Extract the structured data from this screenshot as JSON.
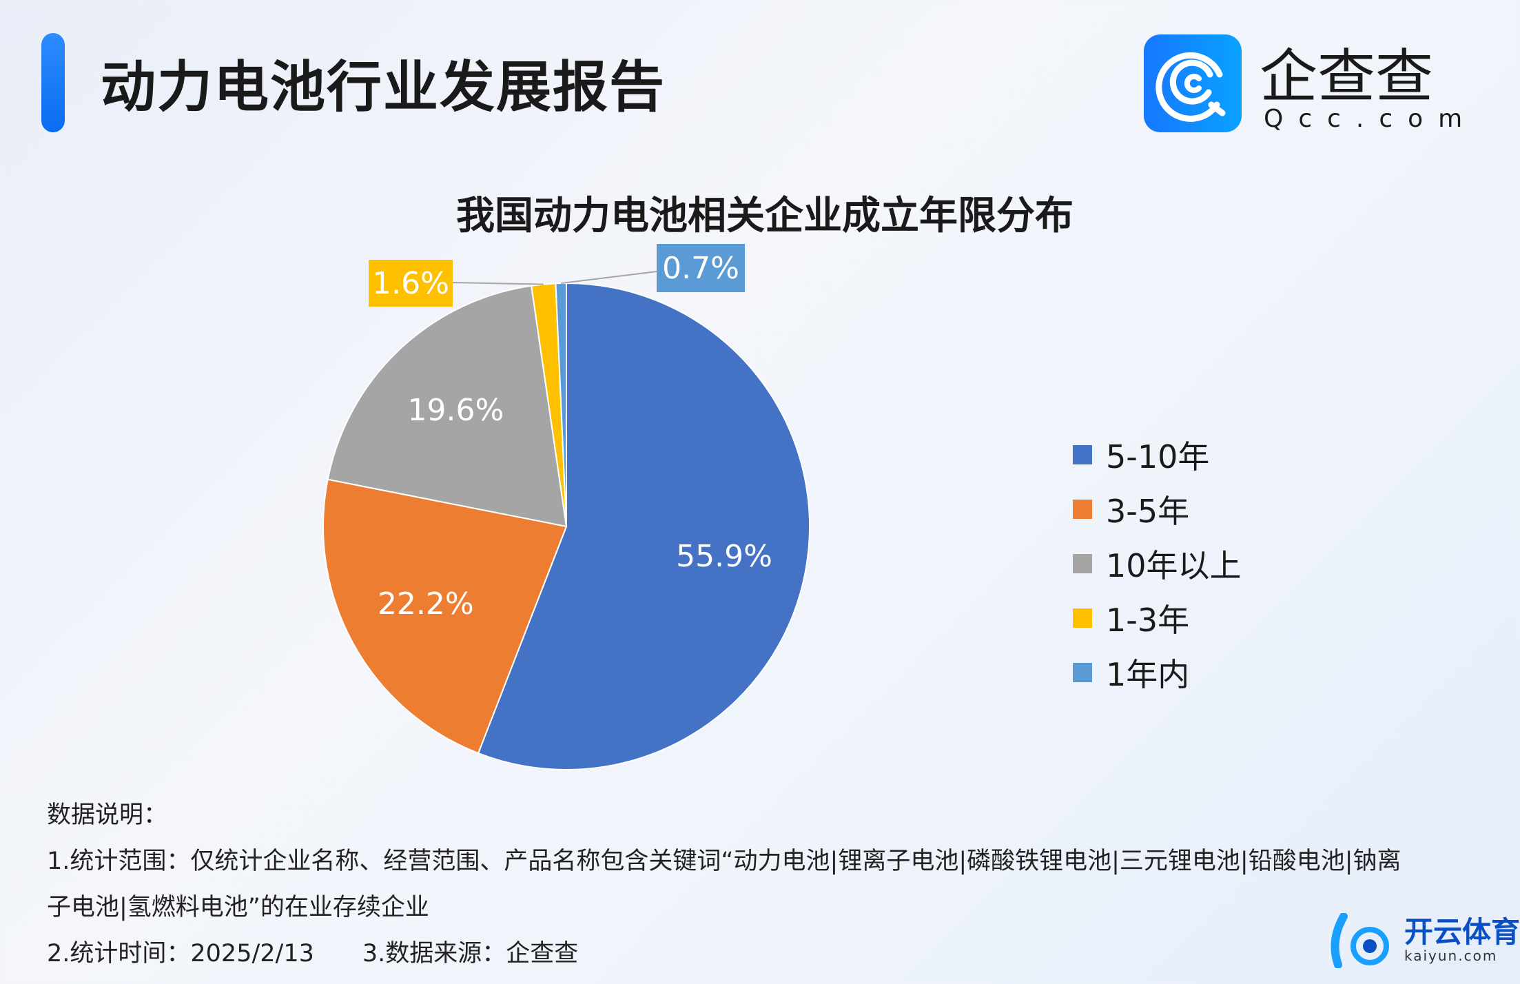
{
  "header": {
    "title": "动力电池行业发展报告"
  },
  "logo": {
    "name_cn": "企查查",
    "domain": "Qcc.com",
    "icon": "qcc-logo-icon",
    "color": "#1677ff"
  },
  "chart_data": {
    "type": "pie",
    "title": "我国动力电池相关企业成立年限分布",
    "categories": [
      "5-10年",
      "3-5年",
      "10年以上",
      "1-3年",
      "1年内"
    ],
    "values": [
      55.9,
      22.2,
      19.6,
      1.6,
      0.7
    ],
    "labels": [
      "55.9%",
      "22.2%",
      "19.6%",
      "1.6%",
      "0.7%"
    ],
    "colors": [
      "#4472c4",
      "#ed7d31",
      "#a5a5a5",
      "#ffc000",
      "#5b9bd5"
    ],
    "start": "top",
    "direction": "clockwise",
    "legend_placement": "right"
  },
  "notes": {
    "heading": "数据说明：",
    "line1a": "1.统计范围：仅统计企业名称、经营范围、产品名称包含关键词“动力电池|锂离子电池|磷酸铁锂电池|三元锂电池|铅酸电池|钠离",
    "line1b": "子电池|氢燃料电池”的在业存续企业",
    "time": "2.统计时间：2025/2/13",
    "source": "3.数据来源：企查查"
  },
  "watermark": {
    "cn": "开云体育",
    "en": "kaiyun.com"
  }
}
